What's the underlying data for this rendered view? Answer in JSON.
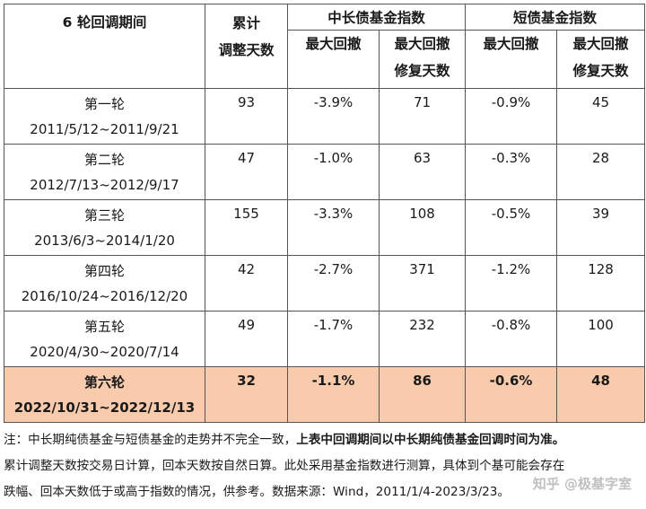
{
  "table": {
    "header": {
      "period": "6 轮回调期间",
      "cum_days_1": "累计",
      "cum_days_2": "调整天数",
      "group1": "中长债基金指数",
      "group2": "短债基金指数",
      "max_dd": "最大回撤",
      "recovery_1": "最大回撤",
      "recovery_2": "修复天数"
    },
    "rows": [
      {
        "round": "第一轮",
        "dates": "2011/5/12~2011/9/21",
        "days": "93",
        "mid_dd": "-3.9%",
        "mid_rec": "71",
        "short_dd": "-0.9%",
        "short_rec": "45"
      },
      {
        "round": "第二轮",
        "dates": "2012/7/13~2012/9/17",
        "days": "47",
        "mid_dd": "-1.0%",
        "mid_rec": "63",
        "short_dd": "-0.3%",
        "short_rec": "28"
      },
      {
        "round": "第三轮",
        "dates": "2013/6/3~2014/1/20",
        "days": "155",
        "mid_dd": "-3.3%",
        "mid_rec": "108",
        "short_dd": "-0.5%",
        "short_rec": "39"
      },
      {
        "round": "第四轮",
        "dates": "2016/10/24~2016/12/20",
        "days": "42",
        "mid_dd": "-2.7%",
        "mid_rec": "371",
        "short_dd": "-1.2%",
        "short_rec": "128"
      },
      {
        "round": "第五轮",
        "dates": "2020/4/30~2020/7/14",
        "days": "49",
        "mid_dd": "-1.7%",
        "mid_rec": "232",
        "short_dd": "-0.8%",
        "short_rec": "100"
      },
      {
        "round": "第六轮",
        "dates": "2022/10/31~2022/12/13",
        "days": "32",
        "mid_dd": "-1.1%",
        "mid_rec": "86",
        "short_dd": "-0.6%",
        "short_rec": "48"
      }
    ],
    "highlight_color": "#f8cbad"
  },
  "notes": {
    "line1_normal": "注：中长期纯债基金与短债基金的走势并不完全一致，",
    "line1_bold": "上表中回调期间以中长期纯债基金回调时间为准。",
    "line2": "累计调整天数按交易日计算，回本天数按自然日算。此处采用基金指数进行测算，具体到个基可能会存在",
    "line3": "跌幅、回本天数低于或高于指数的情况，供参考。数据来源：Wind，2011/1/4-2023/3/23。"
  },
  "watermark": "知乎 @极基字室"
}
